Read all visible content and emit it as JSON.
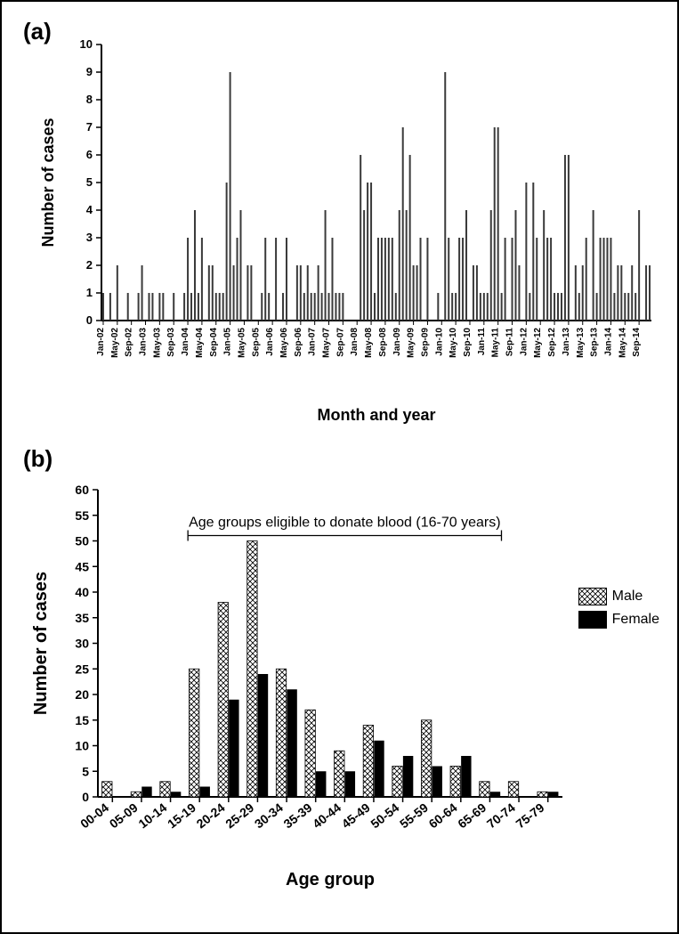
{
  "figure": {
    "border_color": "#000000",
    "background_color": "#ffffff"
  },
  "panel_a": {
    "label": "(a)",
    "type": "bar",
    "x_label": "Month and year",
    "y_label": "Number of cases",
    "ylim": [
      0,
      10
    ],
    "ytick_step": 1,
    "axis_font_size": 18,
    "tick_font_size": 10,
    "bar_color": "#3a3a3a",
    "bar_width": 2.0,
    "x_categories_shown": [
      "Jan-02",
      "May-02",
      "Sep-02",
      "Jan-03",
      "May-03",
      "Sep-03",
      "Jan-04",
      "May-04",
      "Sep-04",
      "Jan-05",
      "May-05",
      "Sep-05",
      "Jan-06",
      "May-06",
      "Sep-06",
      "Jan-07",
      "May-07",
      "Sep-07",
      "Jan-08",
      "May-08",
      "Sep-08",
      "Jan-09",
      "May-09",
      "Sep-09",
      "Jan-10",
      "May-10",
      "Sep-10",
      "Jan-11",
      "May-11",
      "Sep-11",
      "Jan-12",
      "May-12",
      "Sep-12",
      "Jan-13",
      "May-13",
      "Sep-13",
      "Jan-14",
      "May-14",
      "Sep-14"
    ],
    "values": [
      1,
      0,
      1,
      0,
      2,
      0,
      0,
      1,
      0,
      0,
      1,
      2,
      0,
      1,
      1,
      0,
      1,
      1,
      0,
      0,
      1,
      0,
      0,
      1,
      3,
      1,
      4,
      1,
      3,
      0,
      2,
      2,
      1,
      1,
      1,
      5,
      9,
      2,
      3,
      4,
      0,
      2,
      2,
      0,
      0,
      1,
      3,
      1,
      0,
      3,
      0,
      1,
      3,
      0,
      0,
      2,
      2,
      1,
      2,
      1,
      1,
      2,
      1,
      4,
      1,
      3,
      1,
      1,
      1,
      0,
      0,
      0,
      0,
      6,
      4,
      5,
      5,
      1,
      3,
      3,
      3,
      3,
      3,
      1,
      4,
      7,
      4,
      6,
      2,
      2,
      3,
      0,
      3,
      0,
      0,
      1,
      0,
      9,
      3,
      1,
      1,
      3,
      3,
      4,
      0,
      2,
      2,
      1,
      1,
      1,
      4,
      7,
      7,
      1,
      3,
      0,
      3,
      4,
      2,
      0,
      5,
      1,
      5,
      3,
      0,
      4,
      3,
      3,
      1,
      1,
      1,
      6,
      6,
      0,
      2,
      1,
      2,
      3,
      0,
      4,
      1,
      3,
      3,
      3,
      3,
      1,
      2,
      2,
      1,
      1,
      2,
      1,
      4,
      0,
      2,
      2
    ]
  },
  "panel_b": {
    "label": "(b)",
    "type": "grouped-bar",
    "x_label": "Age group",
    "y_label": "Number of cases",
    "ylim": [
      0,
      60
    ],
    "ytick_step": 5,
    "axis_font_size": 20,
    "tick_font_size": 14,
    "annotation": "Age groups eligible to donate blood (16-70 years)",
    "annotation_font_size": 16,
    "annotation_range_indices": [
      3,
      13
    ],
    "categories": [
      "00-04",
      "05-09",
      "10-14",
      "15-19",
      "20-24",
      "25-29",
      "30-34",
      "35-39",
      "40-44",
      "45-49",
      "50-54",
      "55-59",
      "60-64",
      "65-69",
      "70-74",
      "75-79"
    ],
    "series": [
      {
        "name": "Male",
        "pattern": "crosshatch",
        "color": "#000000",
        "fill": "#ffffff",
        "values": [
          3,
          1,
          3,
          25,
          38,
          50,
          25,
          17,
          9,
          14,
          6,
          15,
          6,
          3,
          3,
          1
        ]
      },
      {
        "name": "Female",
        "pattern": "solid",
        "color": "#000000",
        "fill": "#000000",
        "values": [
          0,
          2,
          1,
          2,
          19,
          24,
          21,
          5,
          5,
          11,
          8,
          6,
          8,
          1,
          0,
          1
        ]
      }
    ],
    "legend": {
      "position": "right",
      "items": [
        "Male",
        "Female"
      ]
    },
    "bar_group_width": 0.72,
    "bar_gap": 0.02
  }
}
